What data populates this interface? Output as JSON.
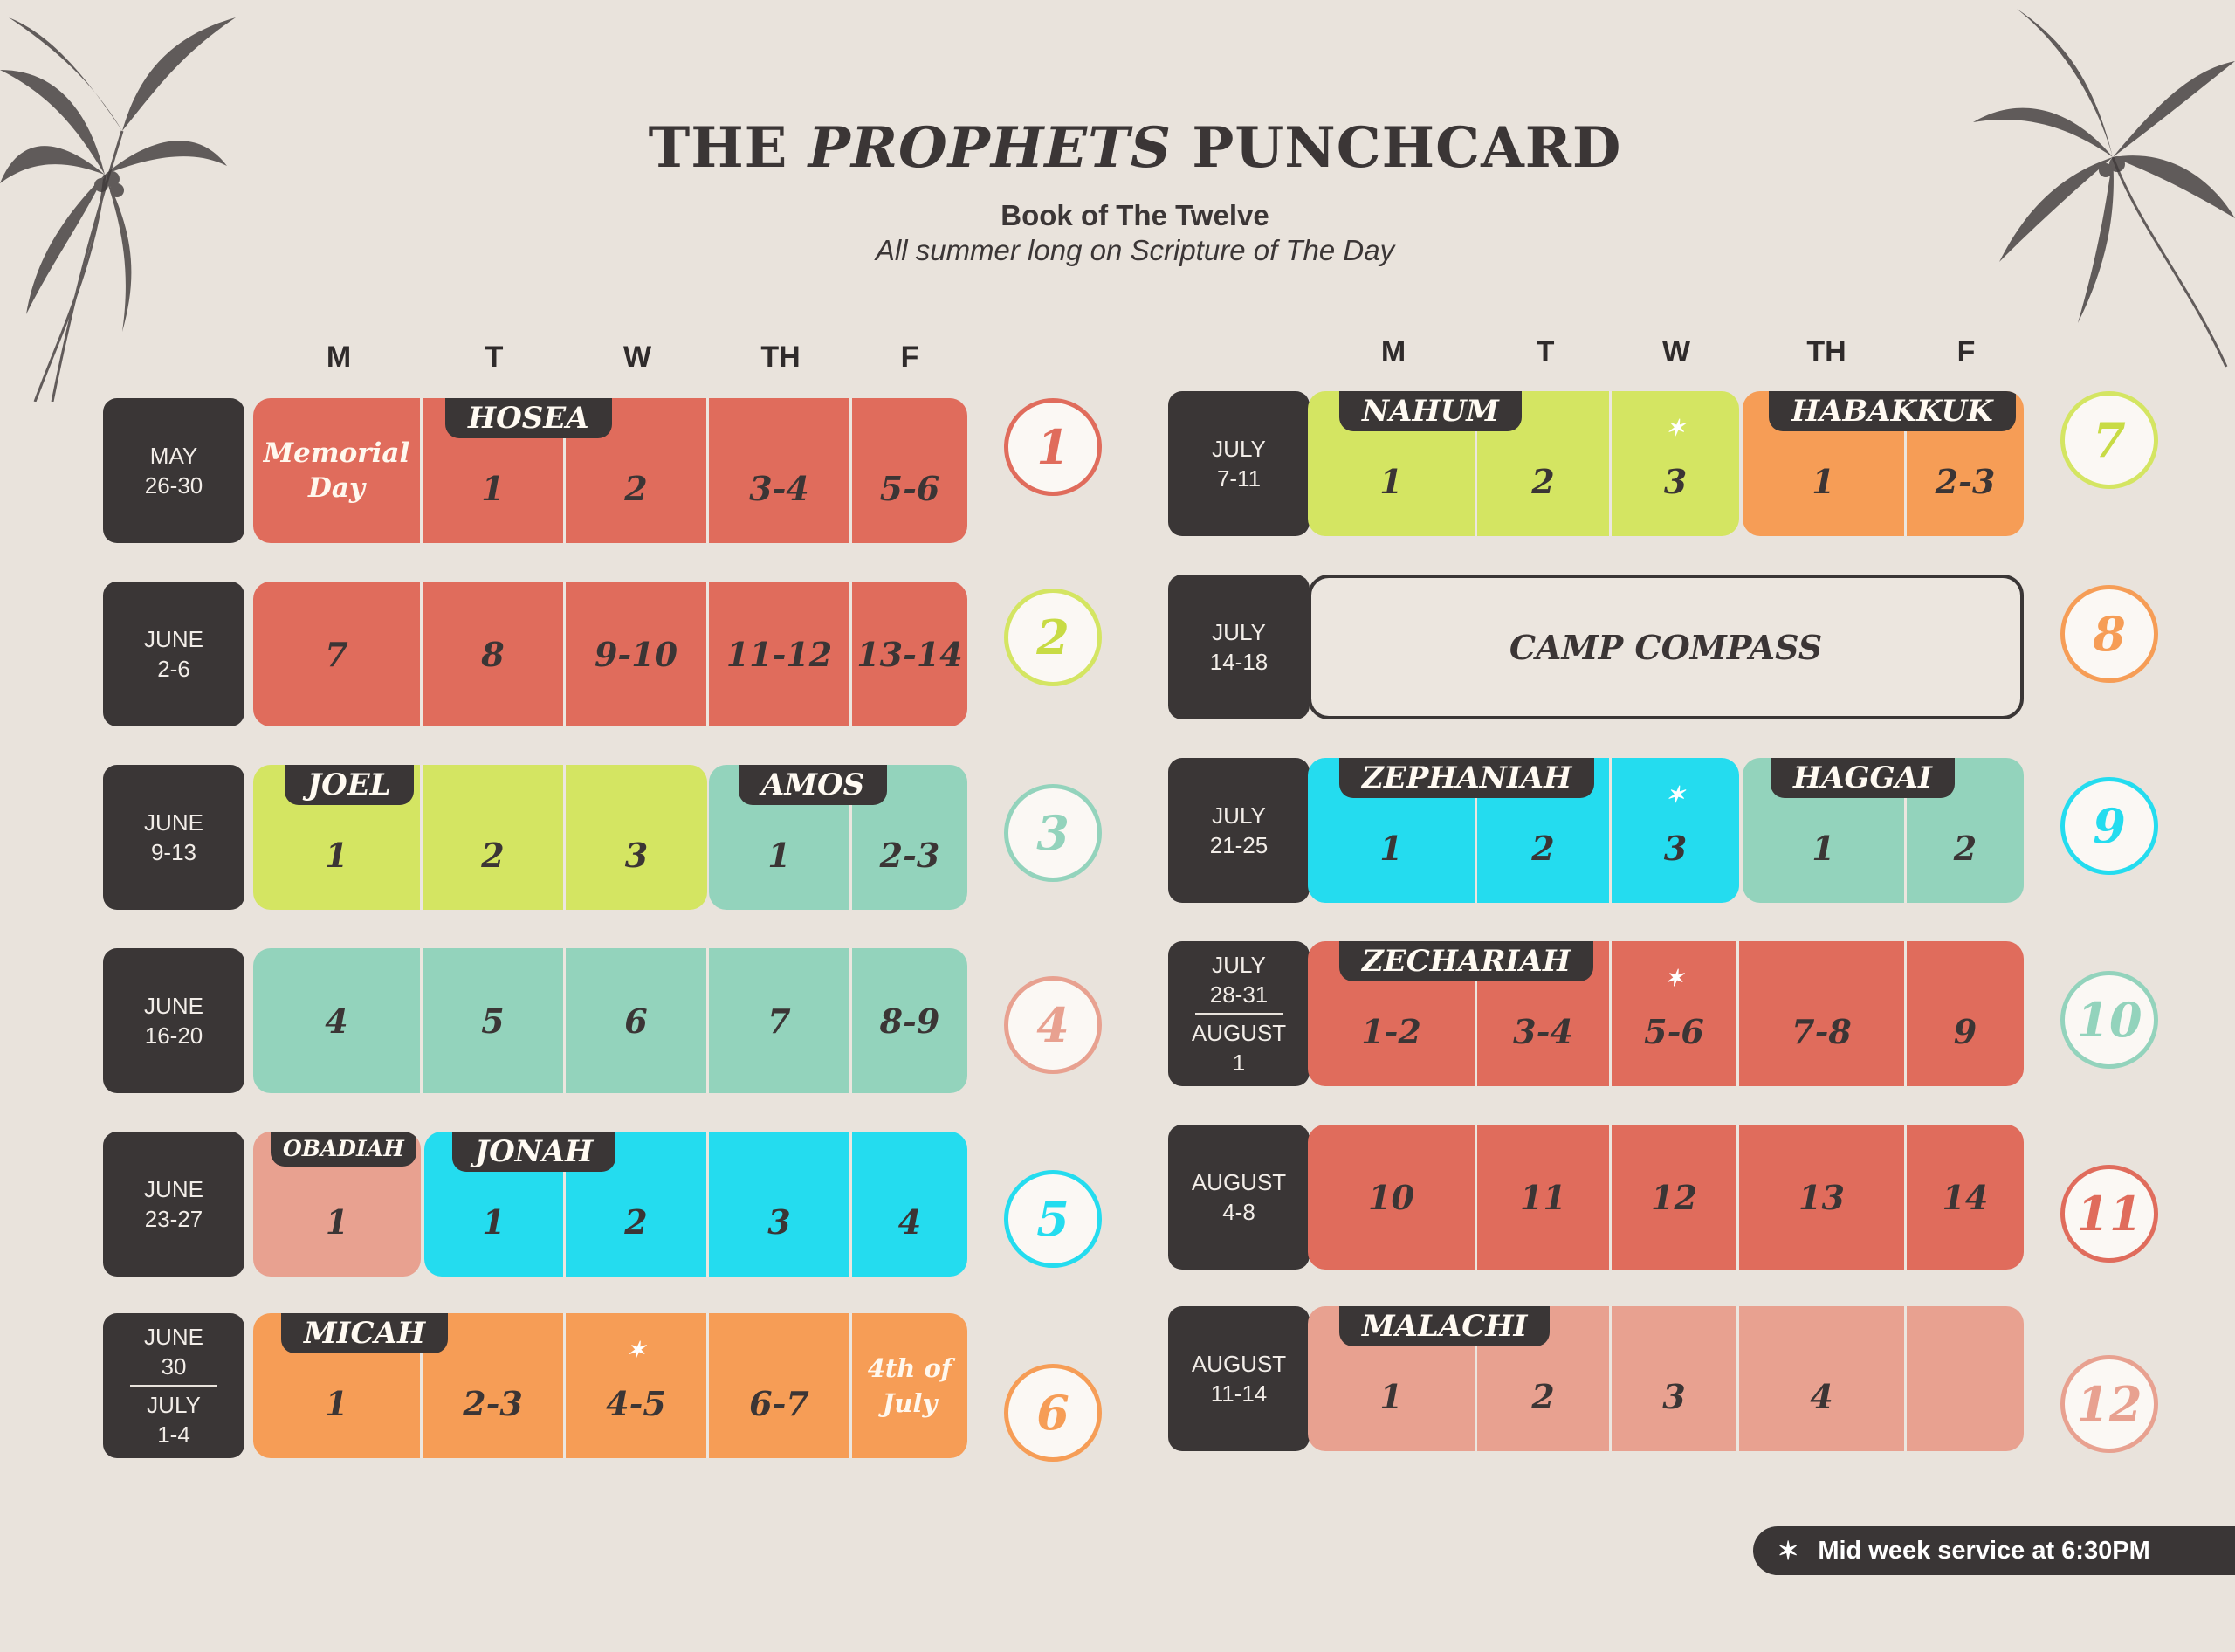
{
  "header": {
    "title_pre": "THE",
    "title_italic": "PROPHETS",
    "title_post": "PUNCHCARD",
    "subtitle": "Book of The Twelve",
    "tagline": "All summer long on Scripture of The Day"
  },
  "days": [
    "M",
    "T",
    "W",
    "TH",
    "F"
  ],
  "colors": {
    "red": "#e06c5c",
    "lime": "#d4e562",
    "mint": "#93d3bc",
    "cyan": "#24dcef",
    "salmon": "#e8a190",
    "orange": "#f69d56",
    "dark": "#3a3636"
  },
  "weeks": {
    "w1": {
      "date": "MAY",
      "date2": "26-30",
      "badge": "1",
      "mon": "Memorial",
      "mon2": "Day",
      "book": "HOSEA",
      "c": [
        "1",
        "2",
        "3-4",
        "5-6"
      ]
    },
    "w2": {
      "date": "JUNE",
      "date2": "2-6",
      "badge": "2",
      "c": [
        "7",
        "8",
        "9-10",
        "11-12",
        "13-14"
      ]
    },
    "w3": {
      "date": "JUNE",
      "date2": "9-13",
      "badge": "3",
      "book1": "JOEL",
      "book2": "AMOS",
      "c": [
        "1",
        "2",
        "3",
        "1",
        "2-3"
      ]
    },
    "w4": {
      "date": "JUNE",
      "date2": "16-20",
      "badge": "4",
      "c": [
        "4",
        "5",
        "6",
        "7",
        "8-9"
      ]
    },
    "w5": {
      "date": "JUNE",
      "date2": "23-27",
      "badge": "5",
      "book1": "OBADIAH",
      "book2": "JONAH",
      "c": [
        "1",
        "1",
        "2",
        "3",
        "4"
      ]
    },
    "w6": {
      "date": "JUNE",
      "date2": "30",
      "date3": "JULY",
      "date4": "1-4",
      "badge": "6",
      "book": "MICAH",
      "c": [
        "1",
        "2-3",
        "4-5",
        "6-7"
      ],
      "fri": "4th of",
      "fri2": "July"
    },
    "w7": {
      "date": "JULY",
      "date2": "7-11",
      "badge": "7",
      "book1": "NAHUM",
      "book2": "HABAKKUK",
      "c": [
        "1",
        "2",
        "3",
        "1",
        "2-3"
      ]
    },
    "w8": {
      "date": "JULY",
      "date2": "14-18",
      "badge": "8",
      "camp": "CAMP COMPASS"
    },
    "w9": {
      "date": "JULY",
      "date2": "21-25",
      "badge": "9",
      "book1": "ZEPHANIAH",
      "book2": "HAGGAI",
      "c": [
        "1",
        "2",
        "3",
        "1",
        "2"
      ]
    },
    "w10": {
      "date": "JULY",
      "date2": "28-31",
      "date3": "AUGUST",
      "date4": "1",
      "badge": "10",
      "book": "ZECHARIAH",
      "c": [
        "1-2",
        "3-4",
        "5-6",
        "7-8",
        "9"
      ]
    },
    "w11": {
      "date": "AUGUST",
      "date2": "4-8",
      "badge": "11",
      "c": [
        "10",
        "11",
        "12",
        "13",
        "14"
      ]
    },
    "w12": {
      "date": "AUGUST",
      "date2": "11-14",
      "badge": "12",
      "book": "MALACHI",
      "c": [
        "1",
        "2",
        "3",
        "4",
        ""
      ]
    }
  },
  "legend": {
    "icon": "star-icon",
    "text": "Mid week service at 6:30PM"
  }
}
